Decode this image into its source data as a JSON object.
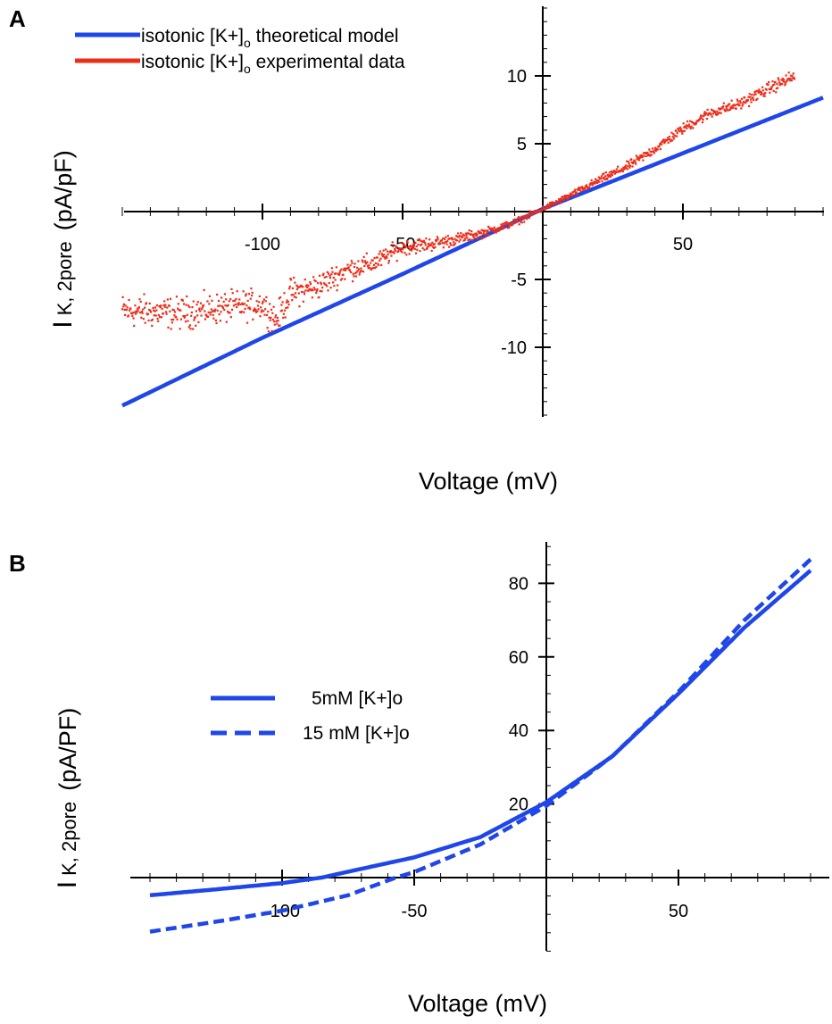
{
  "chart_data": [
    {
      "type": "line",
      "panel": "A",
      "xlabel": "Voltage (mV)",
      "ylabel": {
        "main": "I",
        "sub": "K, 2pore",
        "unit": "(pA/pF)"
      },
      "xlim": [
        -150,
        100
      ],
      "ylim": [
        -15,
        15
      ],
      "xticks": [
        -100,
        -50,
        50
      ],
      "yticks": [
        10,
        5,
        -5,
        -10
      ],
      "x_minor_step": 10,
      "y_minor_step": 1,
      "legend_position": "top-left",
      "series": [
        {
          "name": "isotonic [K+]o theoretical model",
          "label_pre": "isotonic [K+]",
          "label_sub": "o",
          "label_post": " theoretical model",
          "color": "#1f46e8",
          "style": "solid",
          "x": [
            -150,
            -100,
            -50,
            0,
            50,
            100
          ],
          "y": [
            -14.3,
            -9.3,
            -4.6,
            0.2,
            4.3,
            8.4
          ]
        },
        {
          "name": "isotonic [K+]o experimental data",
          "label_pre": "isotonic [K+]",
          "label_sub": "o",
          "label_post": " experimental data",
          "color": "#ee2c18",
          "style": "points",
          "x": [
            -150,
            -130,
            -110,
            -100,
            -95,
            -90,
            -80,
            -70,
            -60,
            -50,
            -40,
            -30,
            -20,
            -10,
            0,
            10,
            20,
            30,
            40,
            50,
            60,
            70,
            80,
            90
          ],
          "y": [
            -7.3,
            -7.5,
            -7.0,
            -6.8,
            -8.0,
            -6.0,
            -5.5,
            -4.3,
            -3.8,
            -2.6,
            -2.4,
            -2.0,
            -1.5,
            -0.8,
            0.2,
            1.2,
            2.3,
            3.3,
            4.6,
            6.1,
            7.3,
            7.9,
            9.0,
            10.0
          ],
          "noise": [
            [
              -150,
              0.9
            ],
            [
              -90,
              0.8
            ],
            [
              -50,
              0.45
            ],
            [
              -20,
              0.25
            ],
            [
              0,
              0.15
            ],
            [
              30,
              0.25
            ],
            [
              90,
              0.35
            ]
          ]
        }
      ]
    },
    {
      "type": "line",
      "panel": "B",
      "xlabel": "Voltage (mV)",
      "ylabel": {
        "main": "I",
        "sub": "K, 2pore",
        "unit": "(pA/PF)"
      },
      "xlim": [
        -158,
        108
      ],
      "ylim": [
        -20,
        91
      ],
      "xticks": [
        -100,
        -50,
        50
      ],
      "yticks": [
        80,
        60,
        40,
        20
      ],
      "x_minor_step": 10,
      "y_minor_step": 5,
      "legend_position": "center-left",
      "series": [
        {
          "name": "5mM [K+]o",
          "color": "#1f46e8",
          "style": "solid",
          "x": [
            -150,
            -125,
            -100,
            -85,
            -75,
            -50,
            -25,
            0,
            25,
            50,
            75,
            100
          ],
          "y": [
            -4.8,
            -3.2,
            -1.5,
            0,
            1.6,
            5.5,
            11,
            20.5,
            33,
            50,
            68,
            83.5
          ]
        },
        {
          "name": "15 mM [K+]o",
          "color": "#1f46e8",
          "style": "dashed",
          "x": [
            -150,
            -125,
            -100,
            -75,
            -57,
            -50,
            -25,
            0,
            25,
            50,
            75,
            100
          ],
          "y": [
            -14.7,
            -12,
            -9,
            -4.8,
            0,
            1.5,
            9,
            19.5,
            33,
            50.5,
            70,
            86.5
          ]
        }
      ]
    }
  ],
  "panels": {
    "a_letter": "A",
    "b_letter": "B"
  }
}
